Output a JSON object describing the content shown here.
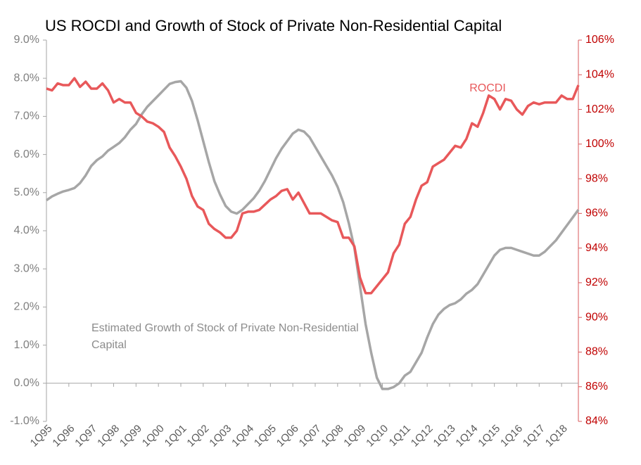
{
  "chart_data": {
    "type": "line",
    "title": "US ROCDI and Growth of Stock of Private Non-Residential Capital",
    "categories": [
      "1Q95",
      null,
      null,
      null,
      "1Q96",
      null,
      null,
      null,
      "1Q97",
      null,
      null,
      null,
      "1Q98",
      null,
      null,
      null,
      "1Q99",
      null,
      null,
      null,
      "1Q00",
      null,
      null,
      null,
      "1Q01",
      null,
      null,
      null,
      "1Q02",
      null,
      null,
      null,
      "1Q03",
      null,
      null,
      null,
      "1Q04",
      null,
      null,
      null,
      "1Q05",
      null,
      null,
      null,
      "1Q06",
      null,
      null,
      null,
      "1Q07",
      null,
      null,
      null,
      "1Q08",
      null,
      null,
      null,
      "1Q09",
      null,
      null,
      null,
      "1Q10",
      null,
      null,
      null,
      "1Q11",
      null,
      null,
      null,
      "1Q12",
      null,
      null,
      null,
      "1Q13",
      null,
      null,
      null,
      "1Q14",
      null,
      null,
      null,
      "1Q15",
      null,
      null,
      null,
      "1Q16",
      null,
      null,
      null,
      "1Q17",
      null,
      null,
      null,
      "1Q18",
      null,
      null,
      null
    ],
    "series": [
      {
        "name": "Estimated Growth of Stock of Private Non-Residential Capital",
        "color": "#a6a6a6",
        "axis": "y",
        "values": [
          4.8,
          4.9,
          4.97,
          5.03,
          5.07,
          5.12,
          5.25,
          5.45,
          5.7,
          5.85,
          5.95,
          6.1,
          6.2,
          6.3,
          6.45,
          6.65,
          6.8,
          7.05,
          7.25,
          7.4,
          7.55,
          7.7,
          7.85,
          7.9,
          7.92,
          7.75,
          7.4,
          6.9,
          6.35,
          5.8,
          5.3,
          4.95,
          4.65,
          4.5,
          4.45,
          4.55,
          4.7,
          4.85,
          5.05,
          5.3,
          5.6,
          5.9,
          6.15,
          6.35,
          6.55,
          6.65,
          6.6,
          6.45,
          6.2,
          5.95,
          5.7,
          5.45,
          5.15,
          4.75,
          4.2,
          3.55,
          2.55,
          1.55,
          0.8,
          0.15,
          -0.15,
          -0.15,
          -0.1,
          0.0,
          0.2,
          0.3,
          0.55,
          0.8,
          1.2,
          1.55,
          1.8,
          1.95,
          2.05,
          2.1,
          2.2,
          2.35,
          2.45,
          2.6,
          2.85,
          3.1,
          3.35,
          3.5,
          3.55,
          3.55,
          3.5,
          3.45,
          3.4,
          3.35,
          3.35,
          3.45,
          3.6,
          3.75,
          3.95,
          4.15,
          4.35,
          4.55
        ]
      },
      {
        "name": "ROCDI",
        "color": "#e8585a",
        "axis": "y2",
        "values": [
          103.2,
          103.1,
          103.5,
          103.4,
          103.4,
          103.8,
          103.3,
          103.6,
          103.2,
          103.2,
          103.5,
          103.1,
          102.4,
          102.6,
          102.4,
          102.4,
          101.8,
          101.6,
          101.3,
          101.2,
          101.0,
          100.7,
          99.8,
          99.3,
          98.7,
          98.0,
          97.0,
          96.4,
          96.2,
          95.4,
          95.1,
          94.9,
          94.6,
          94.6,
          95.0,
          96.0,
          96.1,
          96.1,
          96.2,
          96.5,
          96.8,
          97.0,
          97.3,
          97.4,
          96.8,
          97.2,
          96.6,
          96.0,
          96.0,
          96.0,
          95.8,
          95.6,
          95.5,
          94.6,
          94.6,
          94.1,
          92.3,
          91.4,
          91.4,
          91.8,
          92.2,
          92.6,
          93.7,
          94.2,
          95.4,
          95.8,
          96.8,
          97.6,
          97.8,
          98.7,
          98.9,
          99.1,
          99.5,
          99.9,
          99.8,
          100.3,
          101.2,
          101.0,
          101.8,
          102.8,
          102.6,
          102.0,
          102.6,
          102.5,
          102.0,
          101.7,
          102.2,
          102.4,
          102.3,
          102.4,
          102.4,
          102.4,
          102.8,
          102.6,
          102.6,
          103.4
        ]
      }
    ],
    "ylim": [
      -1,
      9
    ],
    "yticks": [
      {
        "value": -1,
        "label": "-1.0%"
      },
      {
        "value": 0,
        "label": "0.0%"
      },
      {
        "value": 1,
        "label": "1.0%"
      },
      {
        "value": 2,
        "label": "2.0%"
      },
      {
        "value": 3,
        "label": "3.0%"
      },
      {
        "value": 4,
        "label": "4.0%"
      },
      {
        "value": 5,
        "label": "5.0%"
      },
      {
        "value": 6,
        "label": "6.0%"
      },
      {
        "value": 7,
        "label": "7.0%"
      },
      {
        "value": 8,
        "label": "8.0%"
      },
      {
        "value": 9,
        "label": "9.0%"
      }
    ],
    "y2lim": [
      84,
      106
    ],
    "y2ticks": [
      {
        "value": 84,
        "label": "84%"
      },
      {
        "value": 86,
        "label": "86%"
      },
      {
        "value": 88,
        "label": "88%"
      },
      {
        "value": 90,
        "label": "90%"
      },
      {
        "value": 92,
        "label": "92%"
      },
      {
        "value": 94,
        "label": "94%"
      },
      {
        "value": 96,
        "label": "96%"
      },
      {
        "value": 98,
        "label": "98%"
      },
      {
        "value": 100,
        "label": "100%"
      },
      {
        "value": 102,
        "label": "102%"
      },
      {
        "value": 104,
        "label": "104%"
      },
      {
        "value": 106,
        "label": "106%"
      }
    ],
    "grid": false
  }
}
